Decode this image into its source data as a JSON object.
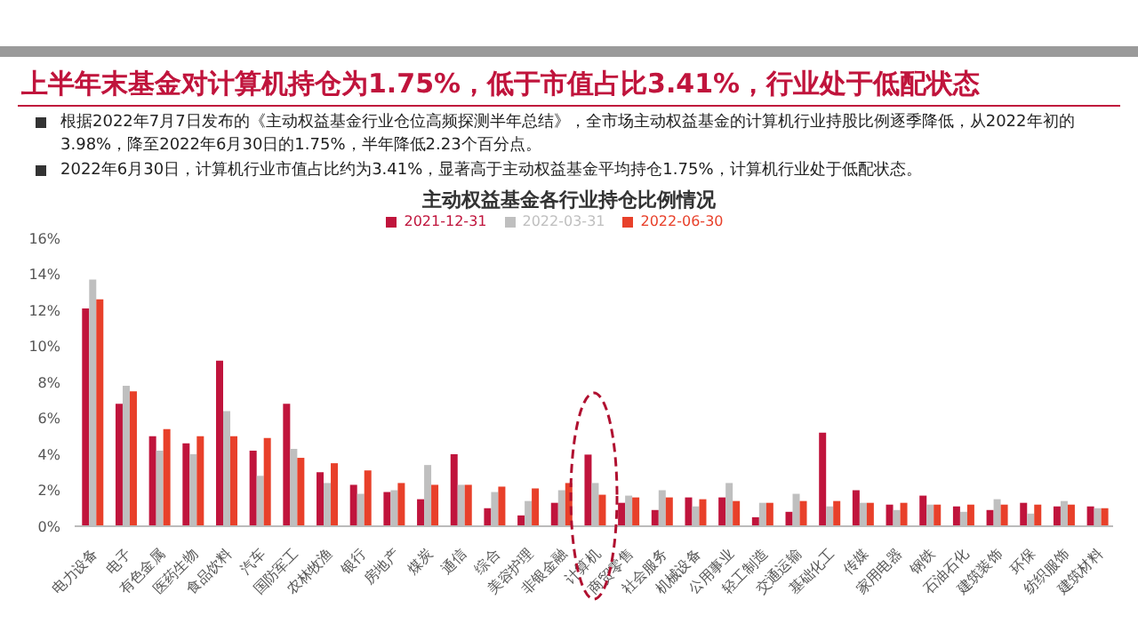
{
  "chart_data": {
    "type": "bar",
    "title": "上半年末基金对计算机持仓为1.75%，低于市值占比3.41%，行业处于低配状态",
    "subtitle": "主动权益基金各行业持仓比例情况",
    "annotations": [
      "根据2022年7月7日发布的《主动权益基金行业仓位高频探测半年总结》，全市场主动权益基金的计算机行业持股比例逐季降低，从2022年初的3.98%，降至2022年6月30日的1.75%，半年降低2.23个百分点。",
      "2022年6月30日，计算机行业市值占比约为3.41%，显著高于主动权益基金平均持仓1.75%，计算机行业处于低配状态。"
    ],
    "categories": [
      "电力设备",
      "电子",
      "有色金属",
      "医药生物",
      "食品饮料",
      "汽车",
      "国防军工",
      "农林牧渔",
      "银行",
      "房地产",
      "煤炭",
      "通信",
      "综合",
      "美容护理",
      "非银金融",
      "计算机",
      "商贸零售",
      "社会服务",
      "机械设备",
      "公用事业",
      "轻工制造",
      "交通运输",
      "基础化工",
      "传媒",
      "家用电器",
      "钢铁",
      "石油石化",
      "建筑装饰",
      "环保",
      "纺织服饰",
      "建筑材料"
    ],
    "series": [
      {
        "name": "2021-12-31",
        "color": "#c0143c",
        "values": [
          12.1,
          6.8,
          5.0,
          4.6,
          9.2,
          4.2,
          6.8,
          3.0,
          2.3,
          1.9,
          1.5,
          4.0,
          1.0,
          0.6,
          1.3,
          3.98,
          1.3,
          0.9,
          1.6,
          1.6,
          0.5,
          0.8,
          5.2,
          2.0,
          1.2,
          1.7,
          1.1,
          0.9,
          1.3,
          1.1,
          1.1
        ]
      },
      {
        "name": "2022-03-31",
        "color": "#bfbfbf",
        "values": [
          13.7,
          7.8,
          4.2,
          4.0,
          6.4,
          2.8,
          4.3,
          2.4,
          1.8,
          2.0,
          3.4,
          2.3,
          1.9,
          1.4,
          2.0,
          2.4,
          1.7,
          2.0,
          1.1,
          2.4,
          1.3,
          1.8,
          1.1,
          1.3,
          0.9,
          1.2,
          0.8,
          1.5,
          0.7,
          1.4,
          1.0
        ]
      },
      {
        "name": "2022-06-30",
        "color": "#e8402a",
        "values": [
          12.6,
          7.5,
          5.4,
          5.0,
          5.0,
          4.9,
          3.8,
          3.5,
          3.1,
          2.4,
          2.3,
          2.3,
          2.2,
          2.1,
          2.4,
          1.75,
          1.6,
          1.6,
          1.5,
          1.4,
          1.3,
          1.4,
          1.4,
          1.3,
          1.3,
          1.2,
          1.2,
          1.2,
          1.2,
          1.2,
          1.0
        ]
      }
    ],
    "ylim": [
      0,
      16
    ],
    "yticks": [
      {
        "value": 0,
        "label": "0%"
      },
      {
        "value": 2,
        "label": "2%"
      },
      {
        "value": 4,
        "label": "4%"
      },
      {
        "value": 6,
        "label": "6%"
      },
      {
        "value": 8,
        "label": "8%"
      },
      {
        "value": 10,
        "label": "10%"
      },
      {
        "value": 12,
        "label": "12%"
      },
      {
        "value": 14,
        "label": "14%"
      },
      {
        "value": 16,
        "label": "16%"
      }
    ],
    "legend": "top",
    "grid": false
  }
}
